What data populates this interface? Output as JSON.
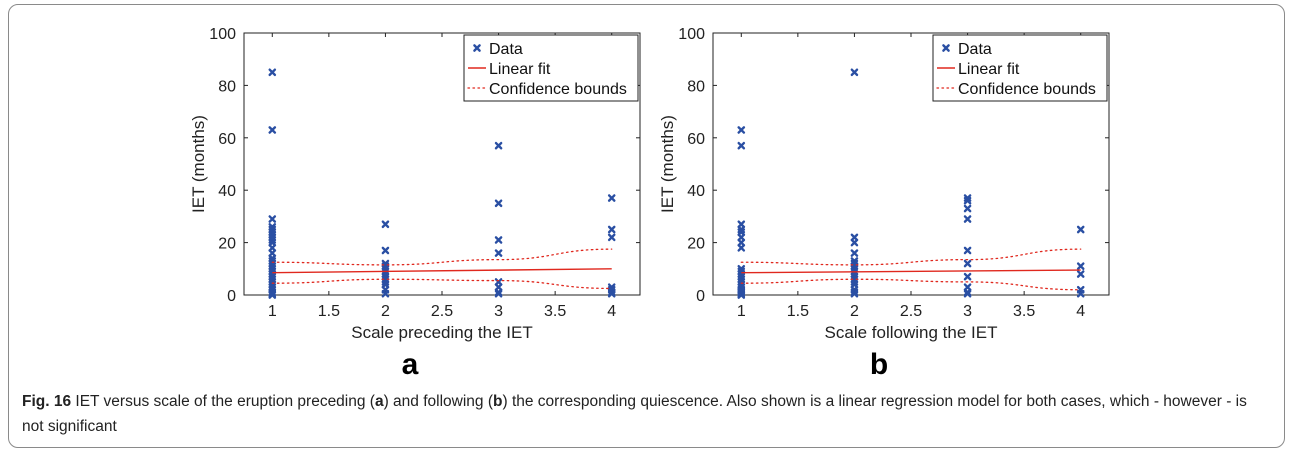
{
  "colors": {
    "data_marker": "#2a4fa3",
    "fit_line": "#e0281e",
    "bounds_line": "#e0281e",
    "axis": "#222222"
  },
  "panels": [
    {
      "letter": "a"
    },
    {
      "letter": "b"
    }
  ],
  "chart_data": [
    {
      "type": "scatter",
      "xlabel": "Scale preceding the IET",
      "ylabel": "IET (months)",
      "xlim": [
        0.75,
        4.25
      ],
      "ylim": [
        0,
        100
      ],
      "xticks": [
        1,
        1.5,
        2,
        2.5,
        3,
        3.5,
        4
      ],
      "xtick_labels": [
        "1",
        "1.5",
        "2",
        "2.5",
        "3",
        "3.5",
        "4"
      ],
      "yticks": [
        0,
        20,
        40,
        60,
        80,
        100
      ],
      "ytick_labels": [
        "0",
        "20",
        "40",
        "60",
        "80",
        "100"
      ],
      "grid": false,
      "legend_position": "top-right",
      "legend": [
        "Data",
        "Linear fit",
        "Confidence bounds"
      ],
      "series": [
        {
          "name": "Data",
          "kind": "points",
          "x": [
            1,
            1,
            1,
            1,
            1,
            1,
            1,
            1,
            1,
            1,
            1,
            1,
            1,
            1,
            1,
            1,
            1,
            1,
            1,
            1,
            1,
            1,
            1,
            1,
            1,
            1,
            1,
            1,
            2,
            2,
            2,
            2,
            2,
            2,
            2,
            2,
            2,
            2,
            2,
            2,
            2,
            3,
            3,
            3,
            3,
            3,
            3,
            3,
            3,
            4,
            4,
            4,
            4,
            4,
            4,
            4
          ],
          "y": [
            85,
            63,
            29,
            26,
            25,
            24,
            23,
            21,
            18,
            14,
            13,
            12,
            11,
            10,
            9,
            8,
            7,
            6,
            5,
            4,
            3,
            2,
            1,
            0.5,
            0,
            22,
            20,
            16,
            27,
            17,
            12,
            11,
            10,
            9,
            8,
            7,
            6,
            5,
            4,
            2,
            0.5,
            57,
            35,
            21,
            16,
            5,
            3,
            1,
            0.5,
            37,
            25,
            22,
            3,
            2,
            1,
            0.5
          ]
        },
        {
          "name": "Linear fit",
          "kind": "line",
          "x": [
            1,
            4
          ],
          "y": [
            8.5,
            10
          ]
        },
        {
          "name": "Confidence bounds",
          "kind": "curve",
          "x": [
            1,
            2,
            3,
            4
          ],
          "y": [
            12.5,
            11.5,
            13.5,
            17.5
          ]
        },
        {
          "name": "Confidence bounds",
          "kind": "curve",
          "x": [
            1,
            2,
            3,
            4
          ],
          "y": [
            4.5,
            6,
            5.5,
            2.5
          ]
        }
      ]
    },
    {
      "type": "scatter",
      "xlabel": "Scale following the IET",
      "ylabel": "IET (months)",
      "xlim": [
        0.75,
        4.25
      ],
      "ylim": [
        0,
        100
      ],
      "xticks": [
        1,
        1.5,
        2,
        2.5,
        3,
        3.5,
        4
      ],
      "xtick_labels": [
        "1",
        "1.5",
        "2",
        "2.5",
        "3",
        "3.5",
        "4"
      ],
      "yticks": [
        0,
        20,
        40,
        60,
        80,
        100
      ],
      "ytick_labels": [
        "0",
        "20",
        "40",
        "60",
        "80",
        "100"
      ],
      "grid": false,
      "legend_position": "top-right",
      "legend": [
        "Data",
        "Linear fit",
        "Confidence bounds"
      ],
      "series": [
        {
          "name": "Data",
          "kind": "points",
          "x": [
            1,
            1,
            1,
            1,
            1,
            1,
            1,
            1,
            1,
            1,
            1,
            1,
            1,
            1,
            1,
            1,
            1,
            1,
            1,
            1,
            1,
            2,
            2,
            2,
            2,
            2,
            2,
            2,
            2,
            2,
            2,
            2,
            2,
            2,
            2,
            2,
            2,
            2,
            3,
            3,
            3,
            3,
            3,
            3,
            3,
            3,
            3,
            3,
            4,
            4,
            4,
            4,
            4
          ],
          "y": [
            63,
            57,
            27,
            25,
            24,
            22,
            20,
            18,
            10,
            9,
            8,
            7,
            6,
            5,
            4,
            3,
            2,
            1,
            0.5,
            0,
            1.5,
            85,
            22,
            20,
            16,
            13,
            12,
            11,
            10,
            9,
            8,
            7,
            6,
            5,
            4,
            2,
            1,
            0.5,
            37,
            36,
            33,
            29,
            17,
            12,
            7,
            3,
            1,
            0.5,
            25,
            11,
            8,
            2,
            0.5
          ]
        },
        {
          "name": "Linear fit",
          "kind": "line",
          "x": [
            1,
            4
          ],
          "y": [
            8.5,
            9.5
          ]
        },
        {
          "name": "Confidence bounds",
          "kind": "curve",
          "x": [
            1,
            2,
            3,
            4
          ],
          "y": [
            12.5,
            11.5,
            13.5,
            17.5
          ]
        },
        {
          "name": "Confidence bounds",
          "kind": "curve",
          "x": [
            1,
            2,
            3,
            4
          ],
          "y": [
            4.5,
            6,
            5,
            2
          ]
        }
      ]
    }
  ],
  "caption": {
    "label": "Fig. 16",
    "text_1": " IET versus scale of the eruption preceding (",
    "ref_a": "a",
    "text_2": ") and following (",
    "ref_b": "b",
    "text_3": ") the corresponding quiescence. Also shown is a linear regression model for both cases, which - however - is not significant"
  }
}
